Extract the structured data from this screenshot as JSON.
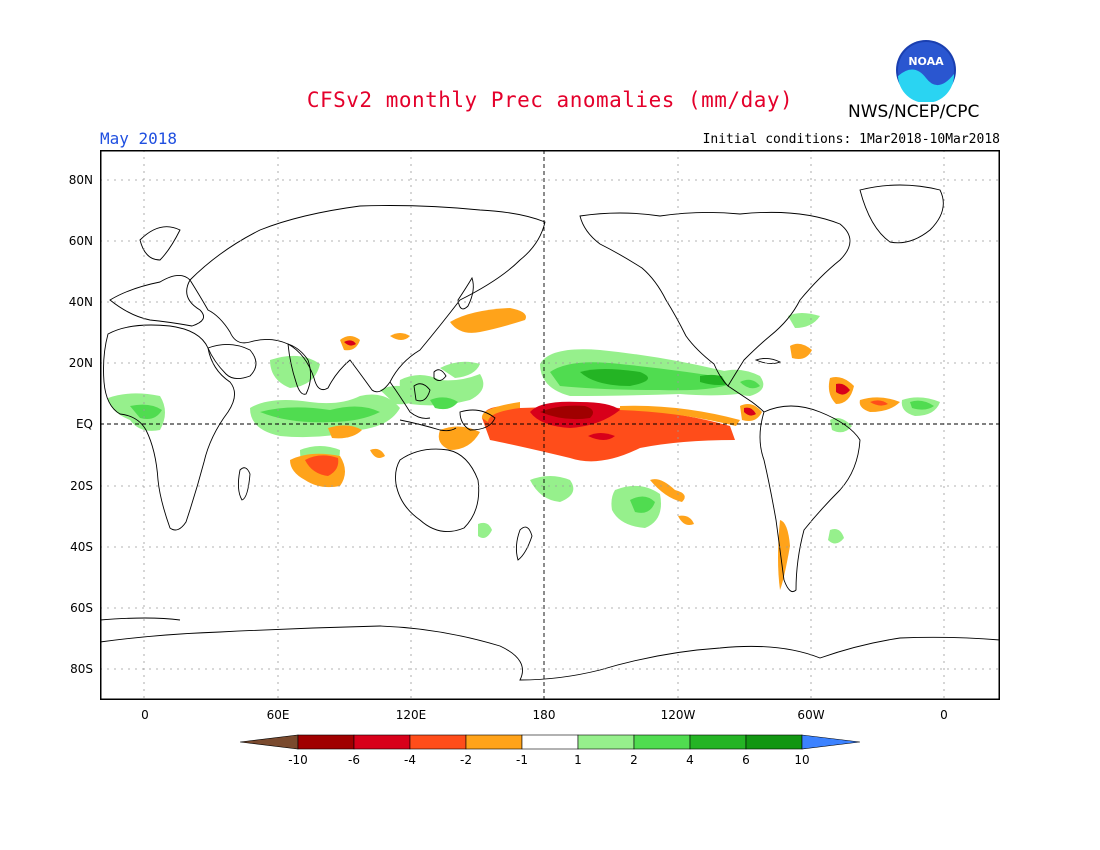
{
  "header": {
    "title": "CFSv2 monthly Prec anomalies (mm/day)",
    "org": "NWS/NCEP/CPC",
    "month": "May 2018",
    "initial_conditions": "Initial conditions: 1Mar2018-10Mar2018",
    "logo_text": "NOAA"
  },
  "map": {
    "lat_labels": [
      "80N",
      "60N",
      "40N",
      "20N",
      "EQ",
      "20S",
      "40S",
      "60S",
      "80S"
    ],
    "lon_labels": [
      "0",
      "60E",
      "120E",
      "180",
      "120W",
      "60W",
      "0"
    ],
    "lon_range": [
      -20,
      385
    ],
    "lat_range": [
      -90,
      90
    ]
  },
  "legend": {
    "labels": [
      "-10",
      "-6",
      "-4",
      "-2",
      "-1",
      "1",
      "2",
      "4",
      "6",
      "10"
    ],
    "colors": [
      "#7a4a2e",
      "#a00000",
      "#d8001a",
      "#ff4d1a",
      "#ffa31a",
      "#ffffff",
      "#96f08c",
      "#50dc50",
      "#24b424",
      "#129612",
      "#3c82ff"
    ]
  }
}
